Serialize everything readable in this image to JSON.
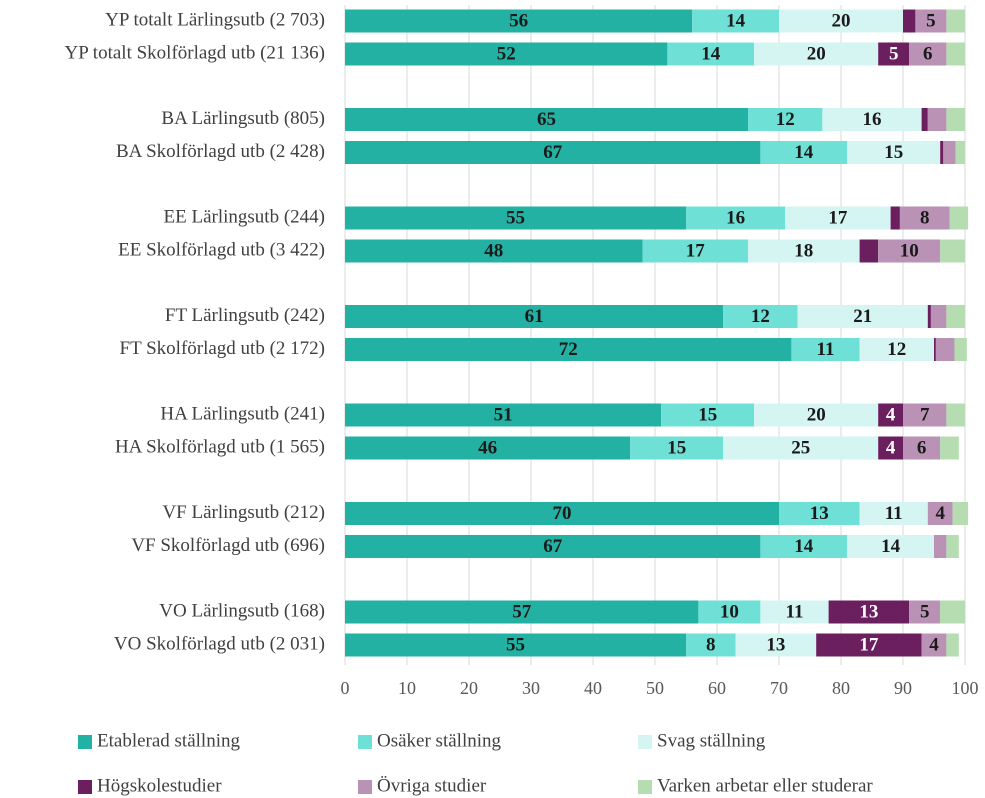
{
  "chart_data": {
    "type": "stacked-bar-horizontal",
    "categories": [
      "YP totalt Lärlingsutb (2 703)",
      "YP totalt Skolförlagd utb (21 136)",
      "BA Lärlingsutb (805)",
      "BA Skolförlagd utb (2 428)",
      "EE Lärlingsutb (244)",
      "EE Skolförlagd utb (3 422)",
      "FT Lärlingsutb (242)",
      "FT Skolförlagd utb (2 172)",
      "HA Lärlingsutb (241)",
      "HA Skolförlagd utb (1 565)",
      "VF Lärlingsutb (212)",
      "VF Skolförlagd utb (696)",
      "VO Lärlingsutb (168)",
      "VO Skolförlagd utb (2 031)"
    ],
    "series": [
      {
        "name": "Etablerad ställning",
        "color": "#22b1a3",
        "label_color": "#1a1a1a",
        "values": [
          56,
          52,
          65,
          67,
          55,
          48,
          61,
          72,
          51,
          46,
          70,
          67,
          57,
          55
        ],
        "value_labels": [
          56,
          52,
          65,
          67,
          55,
          48,
          61,
          72,
          51,
          46,
          70,
          67,
          57,
          55
        ]
      },
      {
        "name": "Osäker ställning",
        "color": "#6fe0d6",
        "label_color": "#1a1a1a",
        "values": [
          14,
          14,
          12,
          14,
          16,
          17,
          12,
          11,
          15,
          15,
          13,
          14,
          10,
          8
        ],
        "value_labels": [
          14,
          14,
          12,
          14,
          16,
          17,
          12,
          11,
          15,
          15,
          13,
          14,
          10,
          8
        ]
      },
      {
        "name": "Svag ställning",
        "color": "#d4f5f2",
        "label_color": "#1a1a1a",
        "values": [
          20,
          20,
          16,
          15,
          17,
          18,
          21,
          12,
          20,
          25,
          11,
          14,
          11,
          13
        ],
        "value_labels": [
          20,
          20,
          16,
          15,
          17,
          18,
          21,
          12,
          20,
          25,
          11,
          14,
          11,
          13
        ]
      },
      {
        "name": "Högskolestudier",
        "color": "#6b1f5f",
        "label_color": "#ffffff",
        "values": [
          2,
          5,
          1,
          0.5,
          1.5,
          3,
          0.5,
          0.3,
          4,
          4,
          0,
          0,
          13,
          17
        ],
        "value_labels": [
          null,
          5,
          null,
          null,
          null,
          null,
          null,
          null,
          4,
          4,
          null,
          null,
          13,
          17
        ]
      },
      {
        "name": "Övriga studier",
        "color": "#b992b5",
        "label_color": "#1a1a1a",
        "values": [
          5,
          6,
          3,
          2,
          8,
          10,
          2.5,
          3,
          7,
          6,
          4,
          2,
          5,
          4
        ],
        "value_labels": [
          5,
          6,
          null,
          null,
          8,
          10,
          null,
          null,
          7,
          6,
          4,
          null,
          5,
          4
        ]
      },
      {
        "name": "Varken arbetar eller studerar",
        "color": "#b5ddb1",
        "label_color": "#1a1a1a",
        "values": [
          3,
          3,
          3,
          1.5,
          3,
          4,
          3,
          2,
          3,
          3,
          2.5,
          2,
          4,
          2
        ],
        "value_labels": [
          null,
          null,
          null,
          null,
          null,
          null,
          null,
          null,
          null,
          null,
          null,
          null,
          null,
          null
        ]
      }
    ],
    "xlim": [
      0,
      100
    ],
    "xticks": [
      0,
      10,
      20,
      30,
      40,
      50,
      60,
      70,
      80,
      90,
      100
    ],
    "grid": true,
    "legend": "bottom"
  }
}
